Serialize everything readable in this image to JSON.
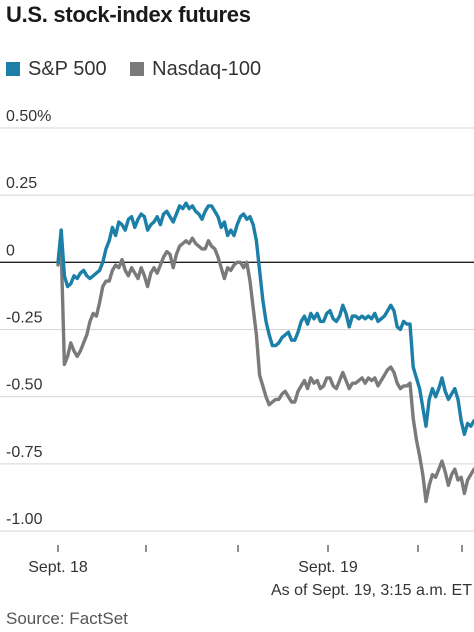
{
  "chart_data": {
    "type": "line",
    "title": "U.S. stock-index futures",
    "ylim": [
      -1.0,
      0.5
    ],
    "y_ticks": [
      0.5,
      0.25,
      0,
      -0.25,
      -0.5,
      -0.75,
      -1.0
    ],
    "y_tick_labels": [
      "0.50%",
      "0.25",
      "0",
      "-0.25",
      "-0.50",
      "-0.75",
      "-1.00"
    ],
    "x_tick_labels": [
      "Sept. 18",
      "Sept. 19"
    ],
    "note": "As of Sept. 19, 3:15 a.m. ET",
    "source": "Source: FactSet",
    "grid": true,
    "legend_position": "top-left",
    "series": [
      {
        "name": "S&P 500",
        "color": "#1b7fa8",
        "values": [
          0.0,
          0.12,
          -0.05,
          -0.09,
          -0.08,
          -0.05,
          -0.06,
          -0.04,
          -0.03,
          -0.05,
          -0.06,
          -0.05,
          -0.04,
          -0.03,
          0.0,
          0.05,
          0.08,
          0.13,
          0.1,
          0.15,
          0.14,
          0.12,
          0.16,
          0.17,
          0.13,
          0.16,
          0.18,
          0.17,
          0.12,
          0.14,
          0.15,
          0.17,
          0.14,
          0.18,
          0.19,
          0.17,
          0.15,
          0.18,
          0.21,
          0.2,
          0.22,
          0.2,
          0.21,
          0.19,
          0.18,
          0.16,
          0.19,
          0.21,
          0.21,
          0.19,
          0.17,
          0.13,
          0.15,
          0.1,
          0.12,
          0.1,
          0.14,
          0.17,
          0.18,
          0.16,
          0.17,
          0.14,
          0.08,
          -0.03,
          -0.14,
          -0.22,
          -0.27,
          -0.31,
          -0.31,
          -0.3,
          -0.28,
          -0.27,
          -0.26,
          -0.29,
          -0.29,
          -0.26,
          -0.22,
          -0.2,
          -0.23,
          -0.19,
          -0.21,
          -0.19,
          -0.22,
          -0.22,
          -0.19,
          -0.18,
          -0.21,
          -0.22,
          -0.2,
          -0.16,
          -0.19,
          -0.24,
          -0.2,
          -0.2,
          -0.21,
          -0.2,
          -0.21,
          -0.2,
          -0.21,
          -0.19,
          -0.22,
          -0.21,
          -0.2,
          -0.18,
          -0.16,
          -0.18,
          -0.24,
          -0.25,
          -0.22,
          -0.23,
          -0.23,
          -0.39,
          -0.43,
          -0.47,
          -0.54,
          -0.61,
          -0.51,
          -0.47,
          -0.5,
          -0.47,
          -0.43,
          -0.48,
          -0.51,
          -0.49,
          -0.47,
          -0.51,
          -0.59,
          -0.64,
          -0.6,
          -0.61,
          -0.59
        ]
      },
      {
        "name": "Nasdaq-100",
        "color": "#7a7a7a",
        "values": [
          -0.01,
          0.05,
          -0.38,
          -0.35,
          -0.3,
          -0.33,
          -0.35,
          -0.33,
          -0.3,
          -0.27,
          -0.22,
          -0.19,
          -0.2,
          -0.15,
          -0.09,
          -0.07,
          -0.07,
          -0.03,
          -0.01,
          -0.02,
          0.01,
          -0.03,
          -0.05,
          -0.02,
          -0.04,
          -0.06,
          -0.02,
          -0.05,
          -0.09,
          -0.04,
          -0.02,
          -0.04,
          -0.01,
          0.02,
          0.04,
          0.03,
          -0.02,
          0.03,
          0.06,
          0.07,
          0.08,
          0.07,
          0.09,
          0.07,
          0.06,
          0.05,
          0.05,
          0.08,
          0.06,
          0.05,
          0.02,
          -0.02,
          -0.06,
          -0.02,
          -0.03,
          -0.01,
          0.0,
          0.0,
          -0.02,
          0.0,
          -0.07,
          -0.17,
          -0.27,
          -0.42,
          -0.46,
          -0.5,
          -0.53,
          -0.52,
          -0.51,
          -0.51,
          -0.49,
          -0.48,
          -0.5,
          -0.52,
          -0.52,
          -0.48,
          -0.46,
          -0.44,
          -0.47,
          -0.43,
          -0.45,
          -0.44,
          -0.47,
          -0.46,
          -0.43,
          -0.43,
          -0.46,
          -0.47,
          -0.44,
          -0.41,
          -0.44,
          -0.47,
          -0.45,
          -0.45,
          -0.44,
          -0.43,
          -0.45,
          -0.43,
          -0.44,
          -0.43,
          -0.46,
          -0.44,
          -0.42,
          -0.4,
          -0.39,
          -0.41,
          -0.45,
          -0.47,
          -0.46,
          -0.46,
          -0.45,
          -0.58,
          -0.66,
          -0.72,
          -0.79,
          -0.89,
          -0.83,
          -0.79,
          -0.8,
          -0.77,
          -0.74,
          -0.78,
          -0.83,
          -0.79,
          -0.77,
          -0.81,
          -0.8,
          -0.86,
          -0.81,
          -0.79,
          -0.77
        ]
      }
    ]
  }
}
